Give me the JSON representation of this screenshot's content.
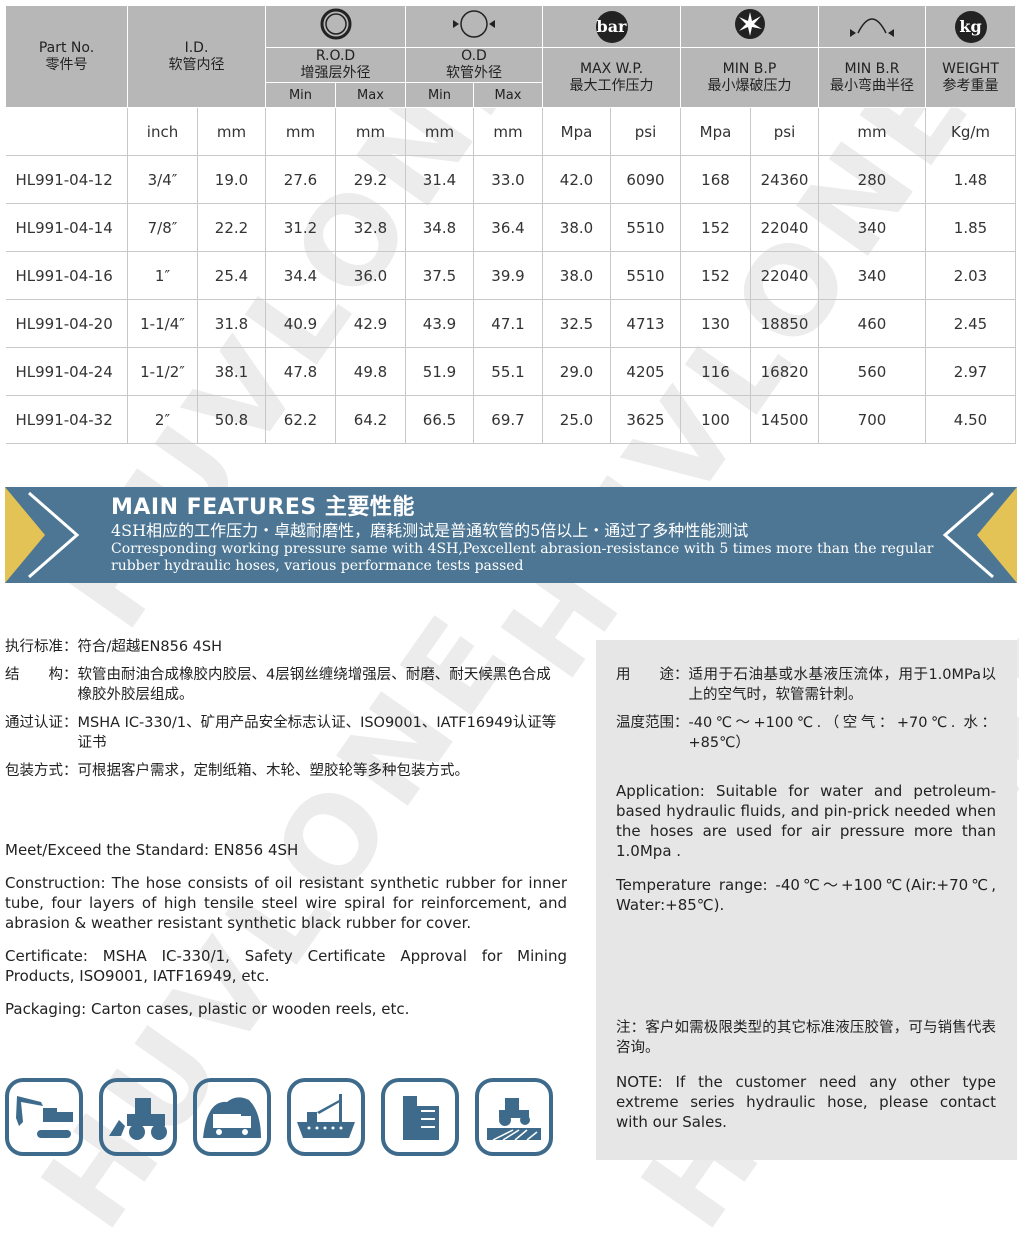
{
  "watermark": "HUVLONE",
  "table": {
    "headers": {
      "part_no": "Part No.",
      "part_no_cn": "零件号",
      "id": "I.D.",
      "id_cn": "软管内径",
      "rod": "R.O.D",
      "rod_cn": "增强层外径",
      "od": "O.D",
      "od_cn": "软管外径",
      "wp": "MAX W.P.",
      "wp_cn": "最大工作压力",
      "bp": "MIN B.P",
      "bp_cn": "最小爆破压力",
      "br": "MIN B.R",
      "br_cn": "最小弯曲半径",
      "weight": "WEIGHT",
      "weight_cn": "参考重量",
      "min": "Min",
      "max": "Max",
      "bar_icon": "bar",
      "kg_icon": "kg"
    },
    "units": [
      "",
      "inch",
      "mm",
      "mm",
      "mm",
      "mm",
      "mm",
      "Mpa",
      "psi",
      "Mpa",
      "psi",
      "mm",
      "Kg/m"
    ],
    "rows": [
      [
        "HL991-04-12",
        "3/4″",
        "19.0",
        "27.6",
        "29.2",
        "31.4",
        "33.0",
        "42.0",
        "6090",
        "168",
        "24360",
        "280",
        "1.48"
      ],
      [
        "HL991-04-14",
        "7/8″",
        "22.2",
        "31.2",
        "32.8",
        "34.8",
        "36.4",
        "38.0",
        "5510",
        "152",
        "22040",
        "340",
        "1.85"
      ],
      [
        "HL991-04-16",
        "1″",
        "25.4",
        "34.4",
        "36.0",
        "37.5",
        "39.9",
        "38.0",
        "5510",
        "152",
        "22040",
        "340",
        "2.03"
      ],
      [
        "HL991-04-20",
        "1-1/4″",
        "31.8",
        "40.9",
        "42.9",
        "43.9",
        "47.1",
        "32.5",
        "4713",
        "130",
        "18850",
        "460",
        "2.45"
      ],
      [
        "HL991-04-24",
        "1-1/2″",
        "38.1",
        "47.8",
        "49.8",
        "51.9",
        "55.1",
        "29.0",
        "4205",
        "116",
        "16820",
        "560",
        "2.97"
      ],
      [
        "HL991-04-32",
        "2″",
        "50.8",
        "62.2",
        "64.2",
        "66.5",
        "69.7",
        "25.0",
        "3625",
        "100",
        "14500",
        "700",
        "4.50"
      ]
    ]
  },
  "banner": {
    "title": "MAIN FEATURES 主要性能",
    "cn": "4SH相应的工作压力・卓越耐磨性，磨耗测试是普通软管的5倍以上・通过了多种性能测试",
    "en": "Corresponding working pressure same with 4SH,Pexcellent abrasion-resistance with 5 times more than the regular rubber hydraulic hoses, various performance tests passed",
    "accent": "#4c7694",
    "highlight": "#e3c256"
  },
  "cn_specs": [
    {
      "label": "执行标准：",
      "text": "符合/超越EN856 4SH"
    },
    {
      "label": "结　　构：",
      "text": "软管由耐油合成橡胶内胶层、4层钢丝缠绕增强层、耐磨、耐天候黑色合成橡胶外胶层组成。"
    },
    {
      "label": "通过认证：",
      "text": "MSHA IC-330/1、矿用产品安全标志认证、ISO9001、IATF16949认证等证书"
    },
    {
      "label": "包装方式：",
      "text": "可根据客户需求，定制纸箱、木轮、塑胶轮等多种包装方式。"
    }
  ],
  "en_specs": [
    "Meet/Exceed the Standard: EN856 4SH",
    "Construction: The hose consists of oil resistant synthetic rubber for inner tube, four layers of high tensile steel wire spiral for reinforcement, and abrasion & weather resistant synthetic black rubber for cover.",
    "Certificate: MSHA IC-330/1, Safety Certificate Approval for Mining Products, ISO9001, IATF16949, etc.",
    "Packaging: Carton cases, plastic or wooden reels, etc."
  ],
  "panel": {
    "use_label": "用　　途：",
    "use_text": "适用于石油基或水基液压流体，用于1.0MPa以上的空气时，软管需针刺。",
    "temp_label": "温度范围：",
    "temp_text": "-40℃～+100℃.（空气：+70℃. 水：+85℃）",
    "application": "Application: Suitable for water and petroleum-based hydraulic fluids, and pin-prick needed when the hoses are used for air pressure more than 1.0Mpa .",
    "temperature": "Temperature range: -40℃～+100℃(Air:+70℃, Water:+85℃).",
    "note_cn": "注：客户如需极限类型的其它标准液压胶管，可与销售代表咨询。",
    "note_en": "NOTE: If the customer need any other type extreme series hydraulic hose, please contact with our Sales."
  },
  "industry_icons": [
    "excavator-icon",
    "wheel-loader-icon",
    "mining-truck-icon",
    "ship-crane-icon",
    "building-icon",
    "tractor-farm-icon"
  ]
}
